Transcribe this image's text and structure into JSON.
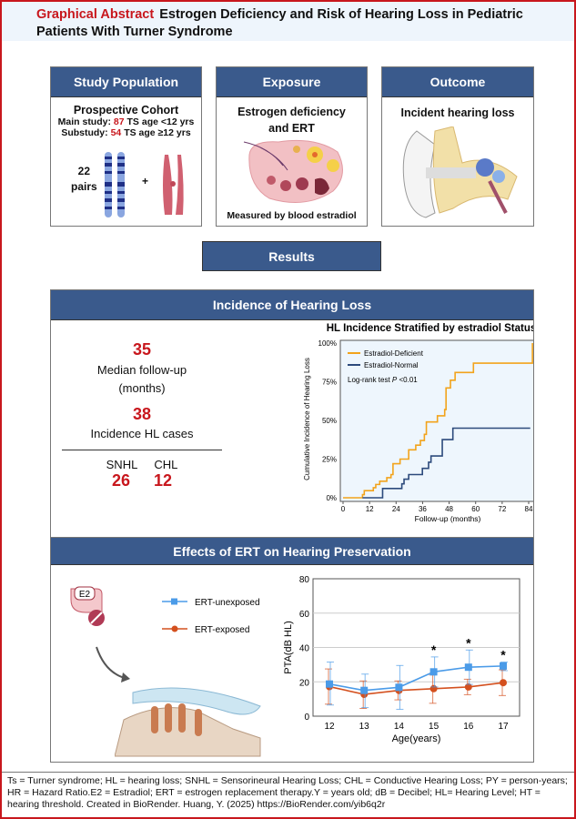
{
  "header": {
    "label": "Graphical Abstract",
    "title": "Estrogen Deficiency and Risk of Hearing Loss in Pediatric Patients With Turner Syndrome"
  },
  "study_population": {
    "heading": "Study Population",
    "cohort": "Prospective Cohort",
    "main_prefix": "Main study:",
    "main_n": "87",
    "main_suffix": "TS age <12 yrs",
    "sub_prefix": "Substudy:",
    "sub_n": "54",
    "sub_suffix": "TS age ≥12 yrs",
    "pairs_n": "22",
    "pairs_label": "pairs",
    "plus": "+"
  },
  "exposure": {
    "heading": "Exposure",
    "text": "Estrogen deficiency and ERT",
    "caption": "Measured by blood estradiol"
  },
  "outcome": {
    "heading": "Outcome",
    "text": "Incident hearing loss"
  },
  "results_label": "Results",
  "incidence": {
    "heading": "Incidence of Hearing Loss",
    "followup_value": "35",
    "followup_label": "Median follow-up (months)",
    "cases_value": "38",
    "cases_label": "Incidence HL cases",
    "snhl_label": "SNHL",
    "chl_label": "CHL",
    "snhl_value": "26",
    "chl_value": "12"
  },
  "effects": {
    "heading": "Effects of ERT on Hearing Preservation",
    "e2_label": "E2"
  },
  "colors": {
    "accent_red": "#c8171d",
    "header_blue": "#3a5a8c",
    "deficient": "#f2a31b",
    "normal": "#2c4a7c",
    "unexposed": "#4b9be8",
    "exposed": "#d4501e"
  },
  "chart_data": [
    {
      "type": "line",
      "subtype": "step",
      "title": "HL Incidence Stratified by estradiol Status",
      "xlabel": "Follow-up (months)",
      "ylabel": "Cumulative Incidence of Hearing Loss",
      "xlim": [
        0,
        84
      ],
      "ylim": [
        0,
        100
      ],
      "xticks": [
        "0",
        "12",
        "24",
        "36",
        "48",
        "60",
        "72",
        "84"
      ],
      "yticks": [
        "0%",
        "25%",
        "50%",
        "75%",
        "100%"
      ],
      "annotation": "Log-rank test P <0.01",
      "annotation_prefix": "Log-rank test ",
      "annotation_p": "P",
      "annotation_suffix": " <0.01",
      "legend": "top-left",
      "grid": false,
      "series": [
        {
          "name": "Estradiol-Deficient",
          "x": [
            0,
            8.8,
            9.6,
            13.7,
            14.8,
            16.6,
            19.8,
            21.7,
            22.6,
            25.8,
            29.7,
            32.9,
            35,
            36.8,
            37.7,
            42.7,
            46,
            46.6,
            48.6,
            50.7,
            59,
            85.7
          ],
          "y": [
            0,
            2,
            4.6,
            6.5,
            8.6,
            10.7,
            13,
            15,
            22,
            25,
            31,
            34,
            37,
            41,
            49,
            53,
            57,
            71,
            76,
            81,
            87,
            100
          ]
        },
        {
          "name": "Estradiol-Normal",
          "x": [
            8.8,
            17.9,
            26.6,
            27.6,
            29.7,
            35.9,
            38.7,
            39.8,
            44.9,
            49.7,
            84.7
          ],
          "y": [
            0,
            6,
            9,
            12,
            15,
            19,
            23,
            27,
            37.6,
            45,
            45
          ]
        }
      ]
    },
    {
      "type": "line",
      "xlabel": "Age(years)",
      "ylabel": "PTA(dB HL)",
      "categories": [
        "12",
        "13",
        "14",
        "15",
        "16",
        "17"
      ],
      "ylim": [
        0,
        80
      ],
      "yticks": [
        "0",
        "20",
        "40",
        "60",
        "80"
      ],
      "grid": true,
      "legend": "left",
      "significant": [
        "15",
        "16",
        "17"
      ],
      "significance_marker": "*",
      "series": [
        {
          "name": "ERT-unexposed",
          "marker": "square",
          "values": [
            18.7,
            15,
            16.8,
            25.8,
            28.5,
            29.2
          ],
          "err_low": [
            6.5,
            5,
            4,
            17,
            18.5,
            26.5
          ],
          "err_high": [
            31.5,
            24.5,
            29.5,
            34.5,
            38.5,
            31.5
          ]
        },
        {
          "name": "ERT-exposed",
          "marker": "circle",
          "values": [
            17.2,
            12.7,
            15,
            16,
            17,
            19.5
          ],
          "err_low": [
            7,
            4.5,
            9.5,
            7.5,
            12.5,
            12
          ],
          "err_high": [
            27.5,
            20.5,
            20.5,
            24,
            21.5,
            27
          ]
        }
      ]
    }
  ],
  "footer": "Ts = Turner syndrome; HL = hearing loss; SNHL = Sensorineural Hearing Loss; CHL = Conductive Hearing Loss; PY = person-years; HR = Hazard Ratio.E2 = Estradiol; ERT = estrogen replacement therapy.Y = years old; dB = Decibel; HL= Hearing Level; HT = hearing threshold. Created in BioRender. Huang, Y. (2025) https://BioRender.com/yib6q2r"
}
